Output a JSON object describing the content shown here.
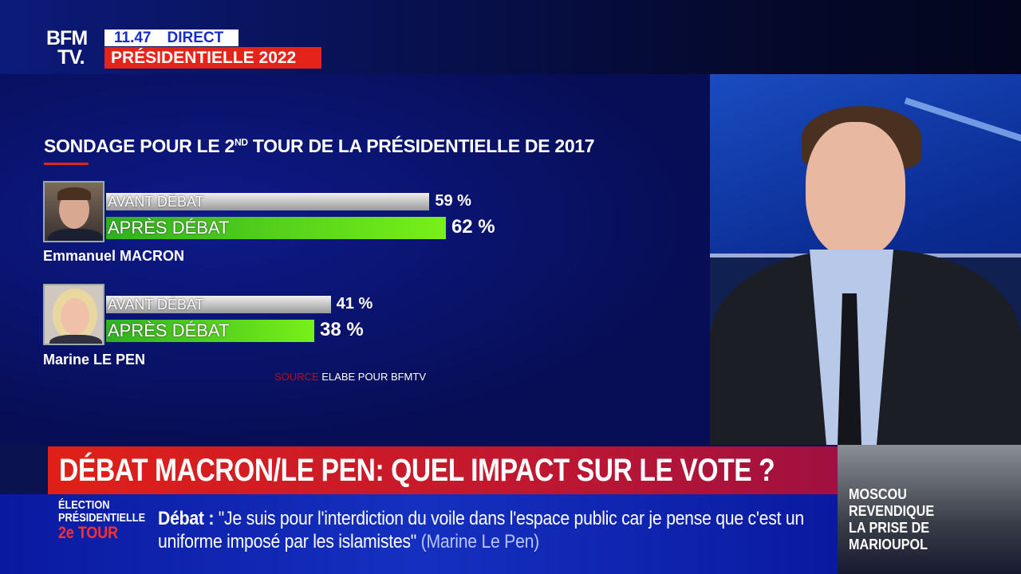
{
  "header": {
    "logo": "BFM TV.",
    "logo_line1": "BFM",
    "logo_line2": "TV.",
    "time": "11.47",
    "live": "DIRECT",
    "programme": "PRÉSIDENTIELLE 2022"
  },
  "chart_data": {
    "type": "bar",
    "orientation": "horizontal",
    "title": "SONDAGE POUR LE 2ND TOUR DE LA PRÉSIDENTIELLE DE 2017",
    "title_main": "SONDAGE POUR LE 2",
    "title_sup": "ND",
    "title_rest": " TOUR DE LA PRÉSIDENTIELLE DE 2017",
    "categories": [
      "Emmanuel MACRON",
      "Marine LE PEN"
    ],
    "series": [
      {
        "name": "AVANT DÉBAT",
        "values": [
          59,
          41
        ],
        "labels": [
          "59 %",
          "41 %"
        ],
        "color": "#c8c8c8"
      },
      {
        "name": "APRÈS DÉBAT",
        "values": [
          62,
          38
        ],
        "labels": [
          "62 %",
          "38 %"
        ],
        "color": "#5ad41c"
      }
    ],
    "unit": "%",
    "source_label": "SOURCE",
    "source": "ELABE POUR BFMTV"
  },
  "headline": "DÉBAT MACRON/LE PEN: QUEL IMPACT SUR LE VOTE ?",
  "ticker": {
    "tag_line1": "ÉLECTION",
    "tag_line2": "PRÉSIDENTIELLE",
    "tag_line3": "2e TOUR",
    "label": "Débat :",
    "quote": " \"Je suis pour l'interdiction du voile dans l'espace public car je pense que c'est un uniforme imposé par les islamistes\"",
    "author": " (Marine Le Pen)"
  },
  "inset": {
    "line1": "MOSCOU",
    "line2": "REVENDIQUE",
    "line3": "LA PRISE DE",
    "line4": "MARIOUPOL"
  },
  "colors": {
    "accent_red": "#e4241b",
    "brand_blue": "#1a2cc8"
  }
}
